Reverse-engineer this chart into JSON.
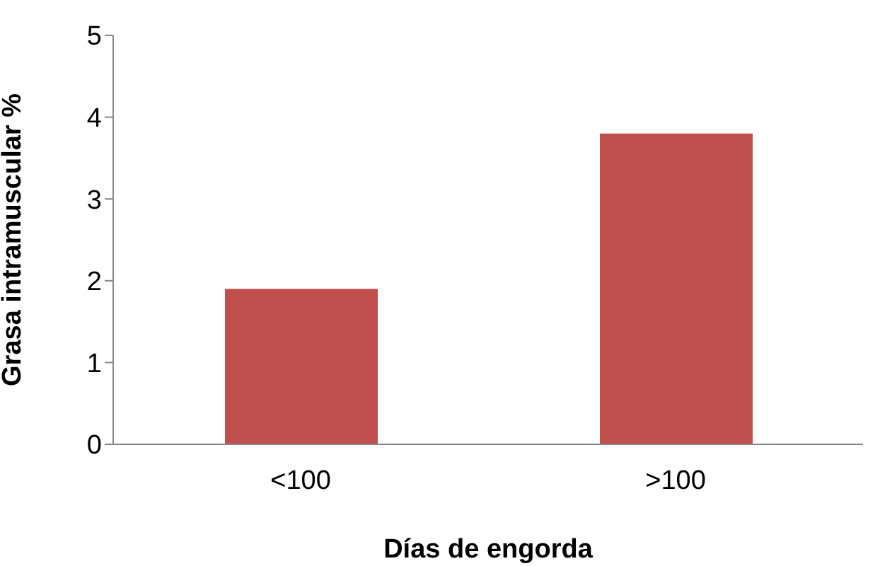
{
  "chart_data": {
    "type": "bar",
    "categories": [
      "<100",
      ">100"
    ],
    "values": [
      1.9,
      3.8
    ],
    "color": "#c0504d",
    "xlabel": "Días de engorda",
    "ylabel": "Grasa intramuscular %",
    "ylim": [
      0,
      5
    ],
    "yticks": [
      0,
      1,
      2,
      3,
      4,
      5
    ],
    "grid": false,
    "legend": false
  }
}
